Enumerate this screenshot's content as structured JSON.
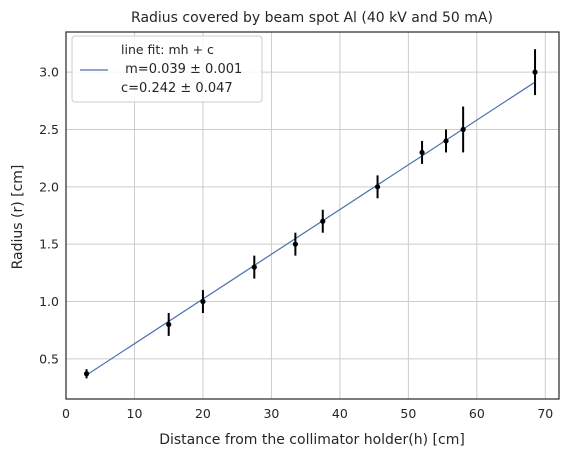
{
  "chart_data": {
    "type": "scatter",
    "title": "Radius covered by beam spot Al (40 kV and 50 mA)",
    "xlabel": "Distance from the  collimator holder(h) [cm]",
    "ylabel": "Radius (r) [cm]",
    "xlim": [
      0,
      72
    ],
    "ylim": [
      0.15,
      3.35
    ],
    "xticks": [
      0,
      10,
      20,
      30,
      40,
      50,
      60,
      70
    ],
    "xtick_labels": [
      "0",
      "10",
      "20",
      "30",
      "40",
      "50",
      "60",
      "70"
    ],
    "yticks": [
      0.5,
      1.0,
      1.5,
      2.0,
      2.5,
      3.0
    ],
    "ytick_labels": [
      "0.5",
      "1.0",
      "1.5",
      "2.0",
      "2.5",
      "3.0"
    ],
    "grid": true,
    "legend": {
      "placement": "top-left",
      "title": "line fit: mh + c",
      "line_label_1": " m=0.039 ± 0.001",
      "line_label_2": "c=0.242 ± 0.047"
    },
    "points": {
      "x": [
        3,
        15,
        20,
        27.5,
        33.5,
        37.5,
        45.5,
        52,
        55.5,
        58,
        68.5
      ],
      "y": [
        0.37,
        0.8,
        1.0,
        1.3,
        1.5,
        1.7,
        2.0,
        2.3,
        2.4,
        2.5,
        3.0
      ],
      "yerr": [
        0.04,
        0.1,
        0.1,
        0.1,
        0.1,
        0.1,
        0.1,
        0.1,
        0.1,
        0.2,
        0.2
      ]
    },
    "fit": {
      "slope": 0.039,
      "intercept": 0.242,
      "x_range": [
        3,
        68.5
      ]
    },
    "colors": {
      "fit_line": "#4c72b0",
      "points": "#000000",
      "grid": "#cccccc",
      "frame": "#262626"
    }
  }
}
